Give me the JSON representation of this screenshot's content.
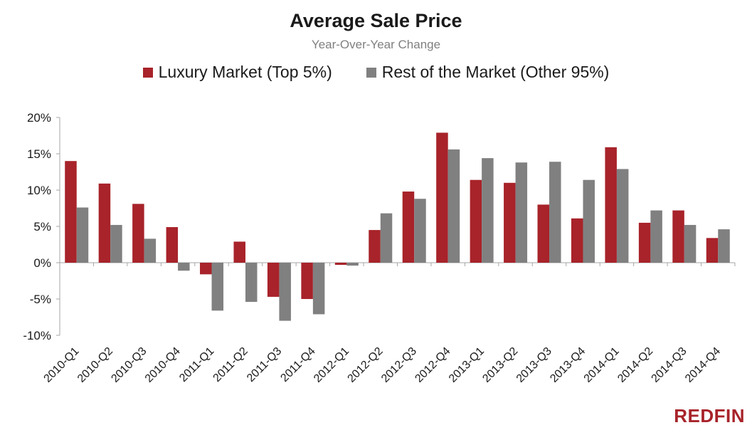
{
  "chart_data": {
    "type": "bar",
    "title": "Average Sale Price",
    "subtitle": "Year-Over-Year  Change",
    "categories": [
      "2010-Q1",
      "2010-Q2",
      "2010-Q3",
      "2010-Q4",
      "2011-Q1",
      "2011-Q2",
      "2011-Q3",
      "2011-Q4",
      "2012-Q1",
      "2012-Q2",
      "2012-Q3",
      "2012-Q4",
      "2013-Q1",
      "2013-Q2",
      "2013-Q3",
      "2013-Q4",
      "2014-Q1",
      "2014-Q2",
      "2014-Q3",
      "2014-Q4"
    ],
    "series": [
      {
        "name": "Luxury Market (Top 5%)",
        "color": "#a8232a",
        "values": [
          14.0,
          10.9,
          8.1,
          4.9,
          -1.6,
          2.9,
          -4.7,
          -5.0,
          -0.3,
          4.5,
          9.8,
          17.9,
          11.4,
          11.0,
          8.0,
          6.1,
          15.9,
          5.5,
          7.2,
          3.4
        ]
      },
      {
        "name": "Rest of the Market (Other 95%)",
        "color": "#808080",
        "values": [
          7.6,
          5.2,
          3.3,
          -1.1,
          -6.6,
          -5.4,
          -8.0,
          -7.1,
          -0.4,
          6.8,
          8.8,
          15.6,
          14.4,
          13.8,
          13.9,
          11.4,
          12.9,
          7.2,
          5.2,
          4.6
        ]
      }
    ],
    "yticks": [
      "20%",
      "15%",
      "10%",
      "5%",
      "0%",
      "-5%",
      "-10%"
    ],
    "ylim": [
      -10,
      20
    ],
    "grid": false,
    "legend": "top"
  },
  "logo_text": "REDFIN"
}
